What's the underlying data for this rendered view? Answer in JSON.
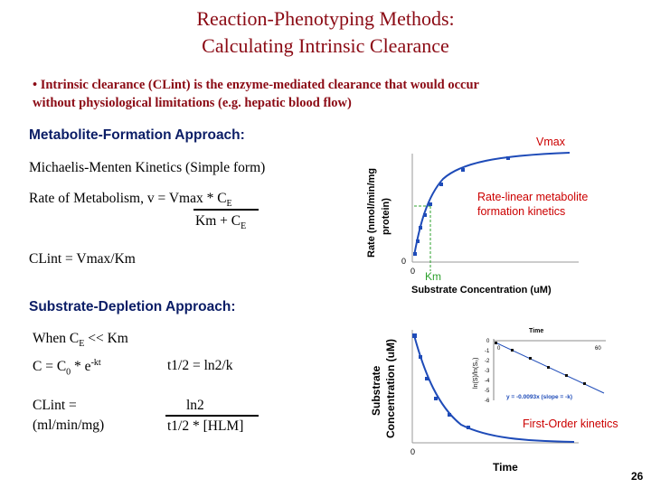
{
  "title": {
    "line1": "Reaction-Phenotyping Methods:",
    "line2": "Calculating Intrinsic Clearance"
  },
  "bullet": {
    "line1": "• Intrinsic clearance (CLint) is the enzyme-mediated clearance that would occur",
    "line2": "without physiological limitations (e.g. hepatic blood flow)"
  },
  "metabolite_section": {
    "heading": "Metabolite-Formation Approach:",
    "mm_label": "Michaelis-Menten Kinetics (Simple form)",
    "rate_prefix": "Rate of Metabolism, v = Vmax * C",
    "rate_sub": "E",
    "denom_prefix": "Km + C",
    "denom_sub": "E",
    "clint": "CLint =  Vmax/Km"
  },
  "mm_chart": {
    "ylabel_line1": "Rate (nmol/min/mg",
    "ylabel_line2": "protein)",
    "xlabel": "Substrate Concentration (uM)",
    "y_zero": "0",
    "x_zero": "0",
    "vmax_label": "Vmax",
    "km_label": "Km",
    "annotation_line1": "Rate-linear metabolite",
    "annotation_line2": "formation kinetics"
  },
  "depletion_section": {
    "heading": "Substrate-Depletion Approach:",
    "when_prefix": "When C",
    "when_sub": "E",
    "when_suffix": " << Km",
    "c_prefix": "C = C",
    "c_sub": "0",
    "c_mid": " * e",
    "c_sup": "-kt",
    "half_life": "t1/2 = ln2/k",
    "clint_label": "CLint    =",
    "clint_units": "(ml/min/mg)",
    "ln2": "ln2",
    "denominator": "t1/2 * [HLM]"
  },
  "decay_chart": {
    "ylabel_line1": "Substrate",
    "ylabel_line2": "Concentration (uM)",
    "xlabel": "Time",
    "x_zero": "0",
    "annotation": "First-Order kinetics"
  },
  "inset_chart": {
    "title": "Time",
    "ylabel": "ln(S)/ln(S₀)",
    "ticks_y": [
      "0",
      "-1",
      "-2",
      "-3",
      "-4",
      "-5",
      "-6"
    ],
    "ticks_x": [
      "0",
      "60"
    ],
    "equation": "y = -0.0093x   (slope = -k)"
  },
  "slide_number": "26",
  "colors": {
    "title": "#8b0a14",
    "heading": "#0b1d66",
    "annotation": "#cc0000",
    "curve": "#1e4bb8",
    "km_guide": "#2ca02c"
  }
}
